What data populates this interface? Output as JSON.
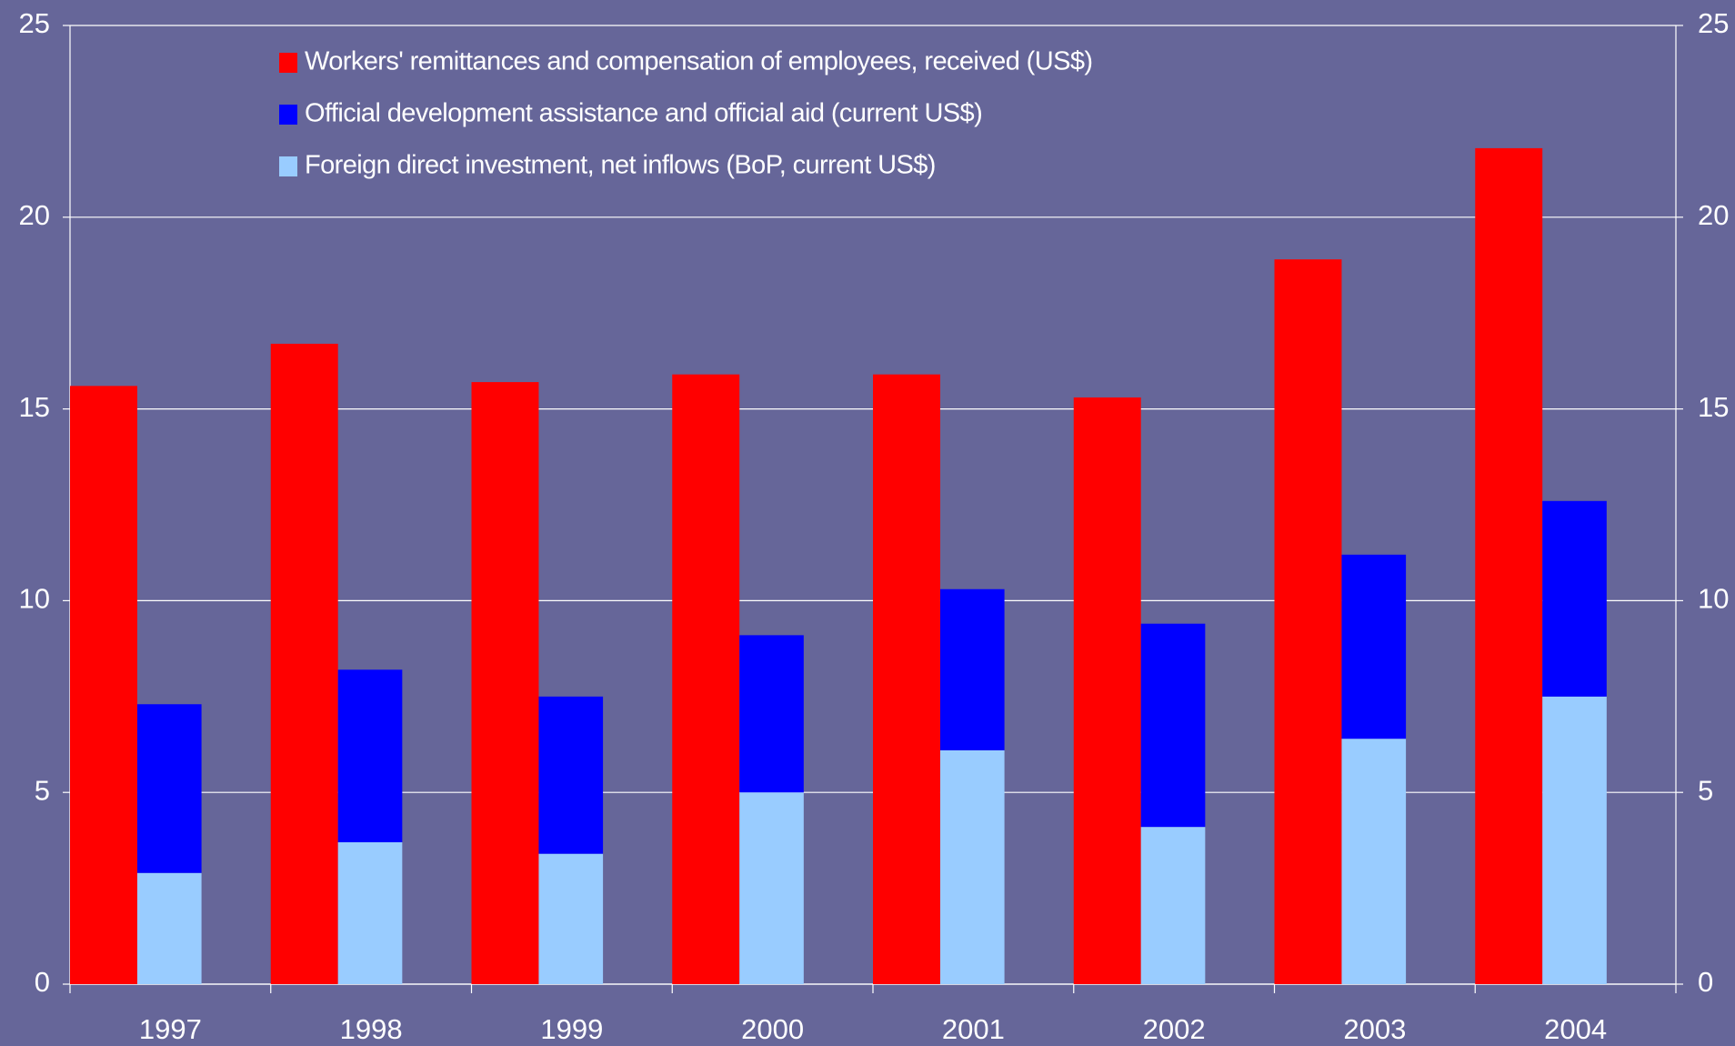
{
  "chart_data": {
    "type": "bar",
    "categories": [
      "1997",
      "1998",
      "1999",
      "2000",
      "2001",
      "2002",
      "2003",
      "2004"
    ],
    "series": [
      {
        "name": "Workers' remittances and compensation of employees, received (US$)",
        "color": "#ff0000",
        "values": [
          15.6,
          16.7,
          15.7,
          15.9,
          15.9,
          15.3,
          18.9,
          21.8
        ]
      },
      {
        "name": "Official development assistance and official aid (current US$)",
        "color": "#0000ff",
        "values": [
          4.4,
          4.5,
          4.1,
          4.1,
          4.2,
          5.3,
          4.8,
          5.1
        ]
      },
      {
        "name": "Foreign direct investment, net inflows (BoP, current US$)",
        "color": "#99ccff",
        "values": [
          2.9,
          3.7,
          3.4,
          5.0,
          6.1,
          4.1,
          6.4,
          7.5
        ]
      }
    ],
    "ylim": [
      0,
      25
    ],
    "yticks": [
      0,
      5,
      10,
      15,
      20,
      25
    ],
    "y2lim": [
      0,
      25
    ],
    "y2ticks": [
      0,
      5,
      10,
      15,
      20,
      25
    ],
    "grid": true,
    "legend": "top"
  }
}
